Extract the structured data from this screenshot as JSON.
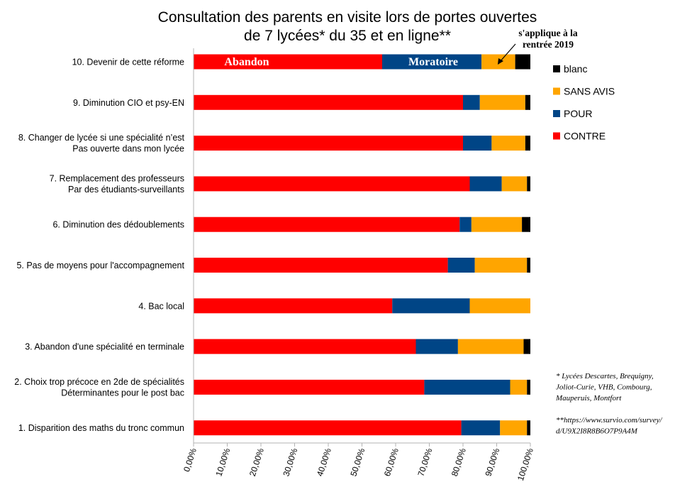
{
  "chart_data": {
    "type": "bar",
    "orientation": "horizontal",
    "stacked": true,
    "title_lines": [
      "Consultation des parents en visite lors de portes ouvertes",
      "de 7 lycées* du 35 et en ligne**"
    ],
    "categories": [
      [
        "10. Devenir de cette réforme"
      ],
      [
        "9. Diminution CIO et psy-EN"
      ],
      [
        "8. Changer de lycée si une spécialité n’est",
        "Pas ouverte dans mon lycée"
      ],
      [
        "7. Remplacement des professeurs",
        "Par des étudiants-surveillants"
      ],
      [
        "6. Diminution des dédoublements"
      ],
      [
        "5. Pas de moyens pour l'accompagnement"
      ],
      [
        "4. Bac local"
      ],
      [
        "3. Abandon d'une spécialité en terminale"
      ],
      [
        "2. Choix trop précoce en 2de de spécialités",
        "Déterminantes pour le post bac"
      ],
      [
        "1. Disparition des maths du tronc commun"
      ]
    ],
    "series": [
      {
        "name": "CONTRE",
        "color": "#ff0000",
        "values": [
          56,
          80,
          80,
          82,
          79,
          75.5,
          59,
          66,
          68.5,
          79.5
        ]
      },
      {
        "name": "POUR",
        "color": "#004586",
        "values": [
          29.5,
          5,
          8.5,
          9.5,
          3.5,
          8,
          23,
          12.5,
          25.5,
          11.5
        ]
      },
      {
        "name": "SANS AVIS",
        "color": "#ffa500",
        "values": [
          10,
          13.5,
          10,
          7.5,
          15,
          15.5,
          18,
          19.5,
          5,
          8
        ]
      },
      {
        "name": "blanc",
        "color": "#000000",
        "values": [
          4.5,
          1.5,
          1.5,
          1,
          2.5,
          1,
          0,
          2,
          1,
          1
        ]
      }
    ],
    "legend_order": [
      "blanc",
      "SANS AVIS",
      "POUR",
      "CONTRE"
    ],
    "legend_position": "right",
    "xlim": [
      0,
      100
    ],
    "xticks": [
      "0,00%",
      "10,00%",
      "20,00%",
      "30,00%",
      "40,00%",
      "50,00%",
      "60,00%",
      "70,00%",
      "80,00%",
      "90,00%",
      "100,00%"
    ],
    "grid": false,
    "bar_labels": {
      "contre": "Abandon",
      "pour": "Moratoire"
    },
    "annotation_lines": [
      "s'applique à la",
      "rentrée 2019"
    ],
    "footnotes": [
      "* Lycées Descartes, Brequigny,",
      "Joliot-Curie, VHB, Combourg,",
      "Mauperuis, Montfort",
      "",
      "**https://www.survio.com/survey/",
      "d/U9X2I8R8B6O7P9A4M"
    ]
  }
}
